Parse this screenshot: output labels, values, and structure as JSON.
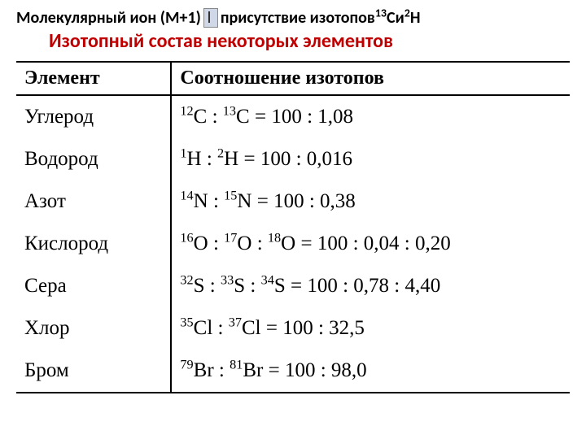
{
  "title1_part1": "Молекулярный ион (М+1) ",
  "title1_part2": "присутствие изотопов ",
  "title1_iso1_mass": "13",
  "title1_iso1_sym": "С",
  "title1_and": " и ",
  "title1_iso2_mass": "2",
  "title1_iso2_sym": "Н",
  "title2": "Изотопный состав некоторых элементов",
  "headers": {
    "element": "Элемент",
    "ratio": "Соотношение изотопов"
  },
  "rows": [
    {
      "element": "Углерод",
      "isotopes": [
        {
          "mass": "12",
          "sym": "C"
        },
        {
          "mass": "13",
          "sym": "C"
        }
      ],
      "values": "100 : 1,08"
    },
    {
      "element": "Водород",
      "isotopes": [
        {
          "mass": "1",
          "sym": "H"
        },
        {
          "mass": "2",
          "sym": "H"
        }
      ],
      "values": "100 : 0,016"
    },
    {
      "element": "Азот",
      "isotopes": [
        {
          "mass": "14",
          "sym": "N"
        },
        {
          "mass": "15",
          "sym": "N"
        }
      ],
      "values": "100 : 0,38"
    },
    {
      "element": "Кислород",
      "isotopes": [
        {
          "mass": "16",
          "sym": "O"
        },
        {
          "mass": "17",
          "sym": "O"
        },
        {
          "mass": "18",
          "sym": "O"
        }
      ],
      "values": "100 : 0,04 : 0,20"
    },
    {
      "element": "Сера",
      "isotopes": [
        {
          "mass": "32",
          "sym": "S"
        },
        {
          "mass": "33",
          "sym": "S"
        },
        {
          "mass": "34",
          "sym": "S"
        }
      ],
      "values": "100 : 0,78 : 4,40"
    },
    {
      "element": "Хлор",
      "isotopes": [
        {
          "mass": "35",
          "sym": "Cl"
        },
        {
          "mass": "37",
          "sym": "Cl"
        }
      ],
      "values": "100 : 32,5"
    },
    {
      "element": "Бром",
      "isotopes": [
        {
          "mass": "79",
          "sym": "Br"
        },
        {
          "mass": "81",
          "sym": "Br"
        }
      ],
      "values": "100 : 98,0"
    }
  ],
  "colors": {
    "title2": "#c00000",
    "text": "#000000",
    "bg": "#ffffff",
    "border": "#000000"
  },
  "fonts": {
    "title_family": "Calibri",
    "body_family": "Times New Roman",
    "title1_size": 20,
    "title2_size": 24,
    "table_size": 24
  }
}
